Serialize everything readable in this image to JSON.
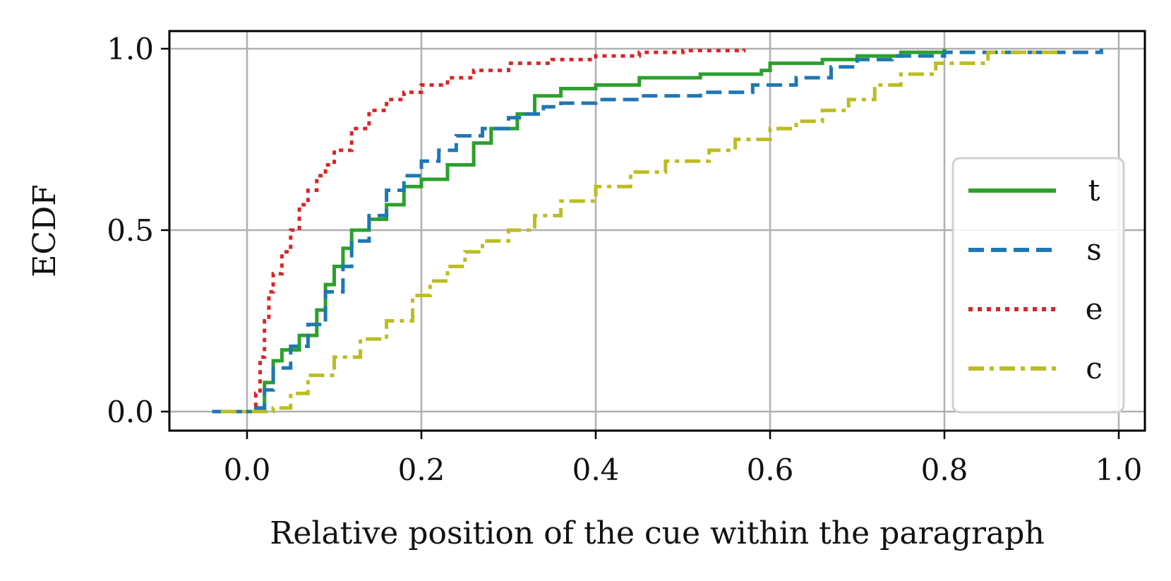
{
  "chart_data": {
    "type": "line",
    "step": true,
    "title": "",
    "xlabel": "Relative position of the cue within the paragraph",
    "ylabel": "ECDF",
    "xlim": [
      -0.09,
      1.03
    ],
    "ylim": [
      -0.05,
      1.05
    ],
    "xticks": [
      0.0,
      0.2,
      0.4,
      0.6,
      0.8,
      1.0
    ],
    "xtick_labels": [
      "0.0",
      "0.2",
      "0.4",
      "0.6",
      "0.8",
      "1.0"
    ],
    "yticks": [
      0.0,
      0.5,
      1.0
    ],
    "ytick_labels": [
      "0.0",
      "0.5",
      "1.0"
    ],
    "grid": true,
    "legend_position": "center-right",
    "series": [
      {
        "name": "t",
        "color": "#2ca02c",
        "dash": "solid",
        "x": [
          -0.03,
          0.01,
          0.02,
          0.03,
          0.04,
          0.06,
          0.08,
          0.09,
          0.1,
          0.11,
          0.12,
          0.14,
          0.16,
          0.18,
          0.2,
          0.23,
          0.26,
          0.28,
          0.31,
          0.33,
          0.36,
          0.4,
          0.45,
          0.52,
          0.59,
          0.6,
          0.66,
          0.7,
          0.75,
          0.8
        ],
        "y": [
          0.0,
          0.01,
          0.08,
          0.14,
          0.17,
          0.21,
          0.28,
          0.35,
          0.4,
          0.45,
          0.5,
          0.53,
          0.57,
          0.62,
          0.64,
          0.68,
          0.74,
          0.78,
          0.82,
          0.87,
          0.89,
          0.9,
          0.92,
          0.93,
          0.94,
          0.96,
          0.97,
          0.98,
          0.99,
          1.0
        ]
      },
      {
        "name": "s",
        "color": "#1f77b4",
        "dash": "dashed",
        "x": [
          -0.04,
          0.01,
          0.02,
          0.03,
          0.05,
          0.07,
          0.09,
          0.11,
          0.12,
          0.14,
          0.16,
          0.18,
          0.2,
          0.22,
          0.24,
          0.27,
          0.3,
          0.32,
          0.34,
          0.36,
          0.4,
          0.45,
          0.52,
          0.58,
          0.63,
          0.67,
          0.7,
          0.74,
          0.8,
          0.98
        ],
        "y": [
          0.0,
          0.01,
          0.06,
          0.12,
          0.18,
          0.24,
          0.33,
          0.4,
          0.47,
          0.54,
          0.61,
          0.65,
          0.69,
          0.72,
          0.76,
          0.78,
          0.81,
          0.82,
          0.84,
          0.85,
          0.86,
          0.87,
          0.88,
          0.9,
          0.92,
          0.95,
          0.97,
          0.98,
          0.99,
          1.0
        ]
      },
      {
        "name": "e",
        "color": "#d62728",
        "dash": "dotted",
        "x": [
          0.005,
          0.01,
          0.015,
          0.02,
          0.025,
          0.03,
          0.04,
          0.05,
          0.06,
          0.07,
          0.08,
          0.09,
          0.1,
          0.12,
          0.14,
          0.16,
          0.18,
          0.2,
          0.23,
          0.26,
          0.3,
          0.35,
          0.4,
          0.45,
          0.5,
          0.57
        ],
        "y": [
          0.0,
          0.05,
          0.15,
          0.25,
          0.33,
          0.38,
          0.44,
          0.5,
          0.57,
          0.61,
          0.65,
          0.68,
          0.72,
          0.78,
          0.83,
          0.86,
          0.88,
          0.9,
          0.92,
          0.94,
          0.96,
          0.97,
          0.98,
          0.99,
          0.995,
          1.0
        ]
      },
      {
        "name": "c",
        "color": "#bcbd22",
        "dash": "dashdot",
        "x": [
          -0.03,
          0.03,
          0.05,
          0.07,
          0.1,
          0.13,
          0.16,
          0.19,
          0.21,
          0.23,
          0.25,
          0.27,
          0.3,
          0.33,
          0.36,
          0.4,
          0.44,
          0.48,
          0.53,
          0.56,
          0.6,
          0.63,
          0.66,
          0.69,
          0.72,
          0.75,
          0.79,
          0.85,
          0.93
        ],
        "y": [
          0.0,
          0.01,
          0.05,
          0.1,
          0.15,
          0.2,
          0.25,
          0.32,
          0.36,
          0.4,
          0.44,
          0.47,
          0.5,
          0.54,
          0.58,
          0.62,
          0.66,
          0.69,
          0.72,
          0.75,
          0.78,
          0.8,
          0.83,
          0.86,
          0.9,
          0.93,
          0.96,
          0.99,
          1.0
        ]
      }
    ]
  }
}
